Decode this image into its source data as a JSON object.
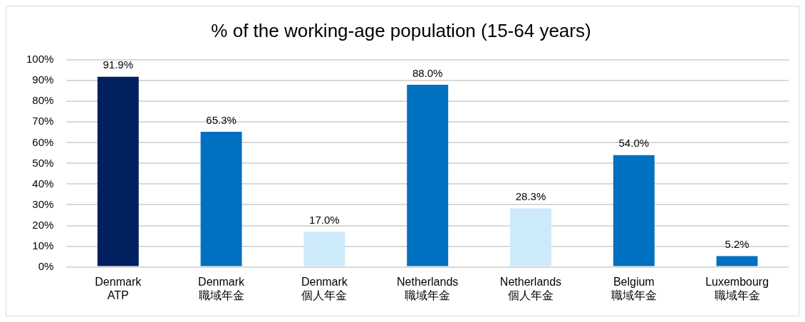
{
  "chart_data": {
    "type": "bar",
    "title": "% of the working-age population (15-64 years)",
    "categories": [
      "Denmark\nATP",
      "Denmark\n職域年金",
      "Denmark\n個人年金",
      "Netherlands\n職域年金",
      "Netherlands\n個人年金",
      "Belgium\n職域年金",
      "Luxembourg\n職域年金"
    ],
    "values": [
      91.9,
      65.3,
      17.0,
      88.0,
      28.3,
      54.0,
      5.2
    ],
    "colors": [
      "#002060",
      "#0070c0",
      "#cdeafb",
      "#0070c0",
      "#cdeafb",
      "#0070c0",
      "#0070c0"
    ],
    "value_labels": [
      "91.9%",
      "65.3%",
      "17.0%",
      "88.0%",
      "28.3%",
      "54.0%",
      "5.2%"
    ],
    "ylim": [
      0,
      100
    ],
    "yticks": [
      {
        "value": 0,
        "label": "0%"
      },
      {
        "value": 10,
        "label": "10%"
      },
      {
        "value": 20,
        "label": "20%"
      },
      {
        "value": 30,
        "label": "30%"
      },
      {
        "value": 40,
        "label": "40%"
      },
      {
        "value": 50,
        "label": "50%"
      },
      {
        "value": 60,
        "label": "60%"
      },
      {
        "value": 70,
        "label": "70%"
      },
      {
        "value": 80,
        "label": "80%"
      },
      {
        "value": 90,
        "label": "90%"
      },
      {
        "value": 100,
        "label": "100%"
      }
    ],
    "grid": "y",
    "legend": false
  }
}
